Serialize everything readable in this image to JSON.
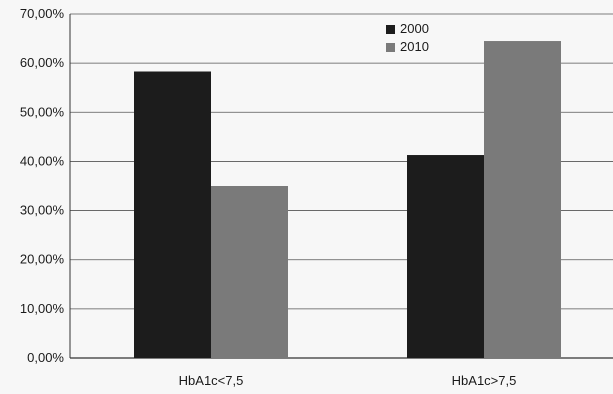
{
  "chart_data": {
    "type": "bar",
    "categories": [
      "HbA1c<7,5",
      "HbA1c>7,5"
    ],
    "series": [
      {
        "name": "2000",
        "values": [
          58.3,
          41.3
        ],
        "color": "#1c1c1c"
      },
      {
        "name": "2010",
        "values": [
          35.0,
          64.5
        ],
        "color": "#7a7a7a"
      }
    ],
    "yticks": [
      "0,00%",
      "10,00%",
      "20,00%",
      "30,00%",
      "40,00%",
      "50,00%",
      "60,00%",
      "70,00%"
    ],
    "ylim": [
      0,
      70
    ],
    "ytick_step": 10,
    "grid": true,
    "legend_position": "top-right",
    "title": "",
    "xlabel": "",
    "ylabel": ""
  }
}
